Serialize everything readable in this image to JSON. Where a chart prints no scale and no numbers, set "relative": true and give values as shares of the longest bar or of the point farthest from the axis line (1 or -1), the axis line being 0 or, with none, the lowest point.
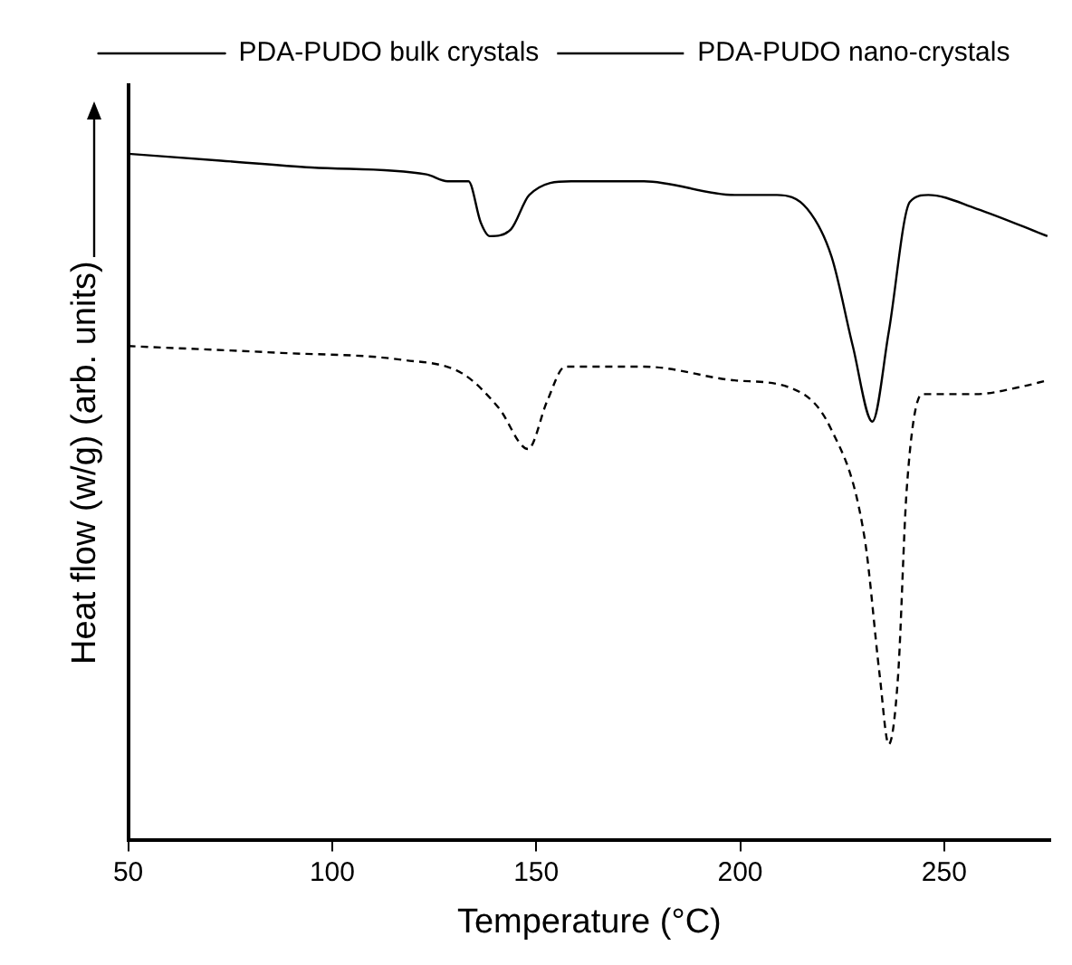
{
  "chart_data": {
    "type": "line",
    "xlabel": "Temperature (°C)",
    "ylabel": "Heat flow (w/g) (arb. units)",
    "relative": true,
    "xlim": [
      50,
      276
    ],
    "xticks": [
      50,
      100,
      150,
      200,
      250
    ],
    "legend": "top",
    "grid": false,
    "marker": "none",
    "series": [
      {
        "name": "PDA-PUDO bulk crystals",
        "color": "#000000",
        "line_style": "solid",
        "x": [
          50,
          72.7,
          94.9,
          123.1,
          128.3,
          133.4,
          136.4,
          138.6,
          143.8,
          148.3,
          158.6,
          176.4,
          198.6,
          209,
          216.4,
          222.4,
          227.6,
          232.4,
          236.4,
          241.6,
          246.1,
          257.9,
          275.3
        ],
        "values": [
          1,
          0.99,
          0.98,
          0.97,
          0.96,
          0.96,
          0.9,
          0.88,
          0.89,
          0.94,
          0.96,
          0.96,
          0.94,
          0.94,
          0.92,
          0.85,
          0.72,
          0.61,
          0.74,
          0.93,
          0.94,
          0.92,
          0.88
        ]
      },
      {
        "name": "PDA-PUDO nano-crystals",
        "color": "#000000",
        "line_style": "dashed",
        "x": [
          50,
          87.5,
          117,
          131.9,
          140.8,
          148,
          152.7,
          157.1,
          176.4,
          198.6,
          211.9,
          222.2,
          230.5,
          234.2,
          236.4,
          238.7,
          240.8,
          244.6,
          257.8,
          268.3,
          275.3
        ],
        "values": [
          0.72,
          0.71,
          0.7,
          0.68,
          0.63,
          0.57,
          0.64,
          0.69,
          0.69,
          0.67,
          0.66,
          0.6,
          0.44,
          0.24,
          0.14,
          0.24,
          0.51,
          0.65,
          0.65,
          0.66,
          0.67
        ]
      }
    ]
  }
}
